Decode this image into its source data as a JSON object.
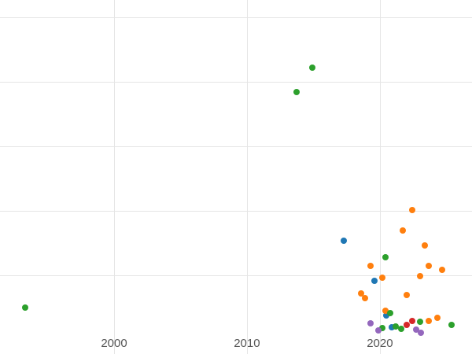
{
  "chart": {
    "background_color": "#ffffff",
    "grid_color": "#e5e5e5",
    "tick_label_color": "#555555"
  },
  "chart_data": {
    "type": "scatter",
    "title": "",
    "xlabel": "",
    "ylabel": "",
    "grid": true,
    "legend": "none",
    "x_tick_values": [
      2000,
      2010,
      2020
    ],
    "x_tick_labels": [
      "2000",
      "2010",
      "2020"
    ],
    "y_gridline_values": [
      1,
      2,
      3,
      4,
      5
    ],
    "x_range": [
      1991.42,
      2026.93
    ],
    "y_range": [
      -0.22,
      5.27
    ],
    "note": "y-axis tick labels are cropped out of view; y values are in relative gridline units",
    "series": [
      {
        "name": "blue",
        "color": "#1f77b4",
        "points": [
          [
            2017.3,
            1.54
          ],
          [
            2019.6,
            0.91
          ],
          [
            2020.5,
            0.38
          ],
          [
            2020.9,
            0.2
          ]
        ]
      },
      {
        "name": "orange",
        "color": "#ff7f0e",
        "points": [
          [
            2022.4,
            2.01
          ],
          [
            2021.7,
            1.7
          ],
          [
            2023.4,
            1.46
          ],
          [
            2023.7,
            1.15
          ],
          [
            2019.3,
            1.15
          ],
          [
            2024.7,
            1.09
          ],
          [
            2020.2,
            0.96
          ],
          [
            2023.0,
            0.99
          ],
          [
            2018.6,
            0.72
          ],
          [
            2018.9,
            0.65
          ],
          [
            2022.0,
            0.7
          ],
          [
            2020.4,
            0.45
          ],
          [
            2023.7,
            0.29
          ],
          [
            2024.3,
            0.34
          ]
        ]
      },
      {
        "name": "green",
        "color": "#2ca02c",
        "points": [
          [
            1993.3,
            0.5
          ],
          [
            2013.7,
            3.84
          ],
          [
            2014.9,
            4.22
          ],
          [
            2020.4,
            1.28
          ],
          [
            2020.8,
            0.41
          ],
          [
            2023.0,
            0.28
          ],
          [
            2021.2,
            0.21
          ],
          [
            2021.6,
            0.17
          ],
          [
            2020.2,
            0.18
          ],
          [
            2025.4,
            0.23
          ]
        ]
      },
      {
        "name": "red",
        "color": "#d62728",
        "points": [
          [
            2022.4,
            0.29
          ],
          [
            2022.0,
            0.23
          ]
        ]
      },
      {
        "name": "purple",
        "color": "#9467bd",
        "points": [
          [
            2019.3,
            0.26
          ],
          [
            2022.7,
            0.16
          ],
          [
            2023.1,
            0.11
          ],
          [
            2019.9,
            0.15
          ]
        ]
      }
    ]
  }
}
